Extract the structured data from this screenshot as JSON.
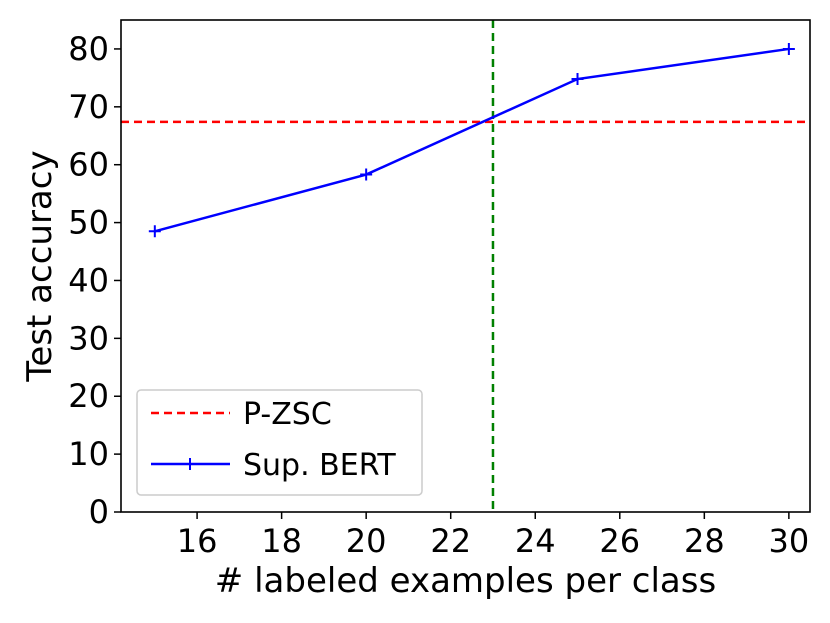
{
  "chart_data": {
    "type": "line",
    "title": "",
    "xlabel": "# labeled examples per class",
    "ylabel": "Test accuracy",
    "xlim": [
      14.2,
      30.5
    ],
    "ylim": [
      0,
      85
    ],
    "xticks": [
      16,
      18,
      20,
      22,
      24,
      26,
      28,
      30
    ],
    "yticks": [
      0,
      10,
      20,
      30,
      40,
      50,
      60,
      70,
      80
    ],
    "grid": false,
    "legend_position": "bottom-left",
    "series": [
      {
        "name": "Sup. BERT",
        "color": "#0000ff",
        "marker": "plus",
        "line_style": "solid",
        "x": [
          15,
          20,
          25,
          30
        ],
        "y": [
          48.5,
          58.3,
          74.8,
          80.0
        ]
      }
    ],
    "reference_lines": [
      {
        "name": "P-ZSC",
        "orientation": "horizontal",
        "value": 67.4,
        "color": "#ff0000",
        "line_style": "dashed",
        "in_legend": true
      },
      {
        "orientation": "vertical",
        "value": 23,
        "color": "#008000",
        "line_style": "dashed",
        "in_legend": false
      }
    ],
    "legend": [
      "P-ZSC",
      "Sup. BERT"
    ]
  }
}
